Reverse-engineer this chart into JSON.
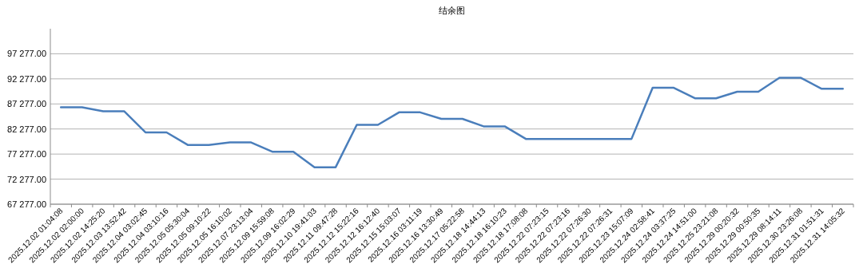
{
  "chart_data": {
    "type": "line",
    "title": "结余图",
    "categories": [
      "2025.12.02 01:04:08",
      "2025.12.02 02:00:00",
      "2025.12.02 14:25:20",
      "2025.12.03 13:52:42",
      "2025.12.04 03:02:45",
      "2025.12.04 03:10:16",
      "2025.12.05 05:30:04",
      "2025.12.05 09:10:22",
      "2025.12.05 16:10:02",
      "2025.12.07 23:13:04",
      "2025.12.09 15:59:08",
      "2025.12.09 16:02:29",
      "2025.12.10 19:41:03",
      "2025.12.11 09:47:28",
      "2025.12.12 15:22:16",
      "2025.12.12 16:12:40",
      "2025.12.15 15:03:07",
      "2025.12.16 03:11:19",
      "2025.12.16 13:30:49",
      "2025.12.17 05:22:58",
      "2025.12.18 14:44:13",
      "2025.12.18 16:10:23",
      "2025.12.18 17:08:08",
      "2025.12.22 07:23:15",
      "2025.12.22 07:23:16",
      "2025.12.22 07:26:30",
      "2025.12.22 07:26:31",
      "2025.12.23 15:07:09",
      "2025.12.24 02:58:41",
      "2025.12.24 03:37:25",
      "2025.12.24 14:51:00",
      "2025.12.25 23:21:08",
      "2025.12.29 00:20:32",
      "2025.12.29 00:50:35",
      "2025.12.29 08:14:11",
      "2025.12.30 23:26:08",
      "2025.12.31 01:51:31",
      "2025.12.31 14:05:32"
    ],
    "values": [
      86600,
      86600,
      85800,
      85800,
      81600,
      81600,
      79100,
      79100,
      79600,
      79600,
      77750,
      77750,
      74650,
      74650,
      83100,
      83100,
      85600,
      85600,
      84300,
      84300,
      82800,
      82800,
      80300,
      80300,
      80300,
      80300,
      80300,
      80300,
      90500,
      90500,
      88400,
      88400,
      89700,
      89700,
      92500,
      92500,
      90300,
      90300
    ],
    "color": "#4a7ebb",
    "ylim": [
      67277,
      102277
    ],
    "yticks": [
      {
        "value": 67277,
        "label": "67 277.00"
      },
      {
        "value": 72277,
        "label": "72 277.00"
      },
      {
        "value": 77277,
        "label": "77 277.00"
      },
      {
        "value": 82277,
        "label": "82 277.00"
      },
      {
        "value": 87277,
        "label": "87 277.00"
      },
      {
        "value": 92277,
        "label": "92 277.00"
      },
      {
        "value": 97277,
        "label": "97 277.00"
      }
    ],
    "grid": "y"
  }
}
